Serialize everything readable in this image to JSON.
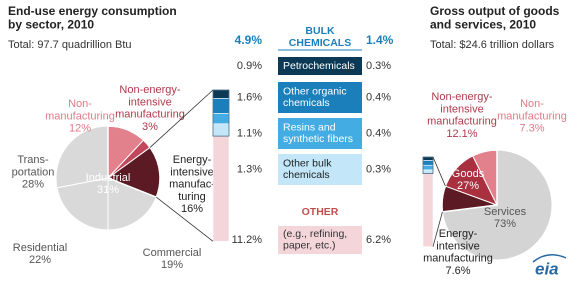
{
  "chart_data": [
    {
      "type": "pie",
      "title": "End-use energy consumption\nby sector, 2010",
      "subtitle": "Total: 97.7 quadrillion Btu",
      "categories": [
        "Non-\nmanufacturing",
        "Non-energy-\nintensive\nmanufacturing",
        "Energy-\nintensive\nmanufac-\nturing",
        "Commercial",
        "Residential",
        "Trans-\nportation"
      ],
      "values": [
        12,
        3,
        16,
        19,
        22,
        28
      ],
      "value_labels": [
        "12%",
        "3%",
        "16%",
        "19%",
        "22%",
        "28%"
      ],
      "colors": [
        "#e2808c",
        "#c1475b",
        "#5b1a24",
        "#d9d9d9",
        "#d9d9d9",
        "#d9d9d9"
      ],
      "group": {
        "name": "Industrial",
        "value": 31,
        "value_label": "31%"
      }
    },
    {
      "type": "stacked-bar",
      "section_titles": [
        "BULK\nCHEMICALS",
        "OTHER"
      ],
      "categories": [
        "Petrochemicals",
        "Other organic\nchemicals",
        "Resins and\nsynthetic fibers",
        "Other bulk\nchemicals",
        "(e.g., refining,\npaper, etc.)"
      ],
      "colors": [
        "#0c3a56",
        "#1b7fbb",
        "#43ace2",
        "#c3e7f8",
        "#f3d5da"
      ],
      "series": [
        {
          "values": [
            0.9,
            1.6,
            1.1,
            1.3,
            11.2
          ],
          "value_labels": [
            "0.9%",
            "1.6%",
            "1.1%",
            "1.3%",
            "11.2%"
          ]
        },
        {
          "values": [
            0.3,
            0.4,
            0.4,
            0.3,
            6.2
          ],
          "value_labels": [
            "0.3%",
            "0.4%",
            "0.4%",
            "0.3%",
            "6.2%"
          ]
        }
      ],
      "subtotals": [
        {
          "value": 4.9,
          "label": "4.9%"
        },
        {
          "value": 1.4,
          "label": "1.4%"
        }
      ]
    },
    {
      "type": "pie",
      "title": "Gross output of goods\nand services, 2010",
      "subtitle": "Total: $24.6 trillion dollars",
      "categories": [
        "Energy-\nintensive\nmanufacturing",
        "Non-energy-\nintensive\nmanufacturing",
        "Non-\nmanufacturing",
        "Services"
      ],
      "values": [
        7.6,
        12.1,
        7.3,
        73
      ],
      "value_labels": [
        "7.6%",
        "12.1%",
        "7.3%",
        "73%"
      ],
      "colors": [
        "#5b1a24",
        "#a8303f",
        "#e2808c",
        "#d4d4d4"
      ],
      "group": {
        "name": "Goods",
        "value": 27,
        "value_label": "27%"
      }
    }
  ],
  "logo": "eia"
}
